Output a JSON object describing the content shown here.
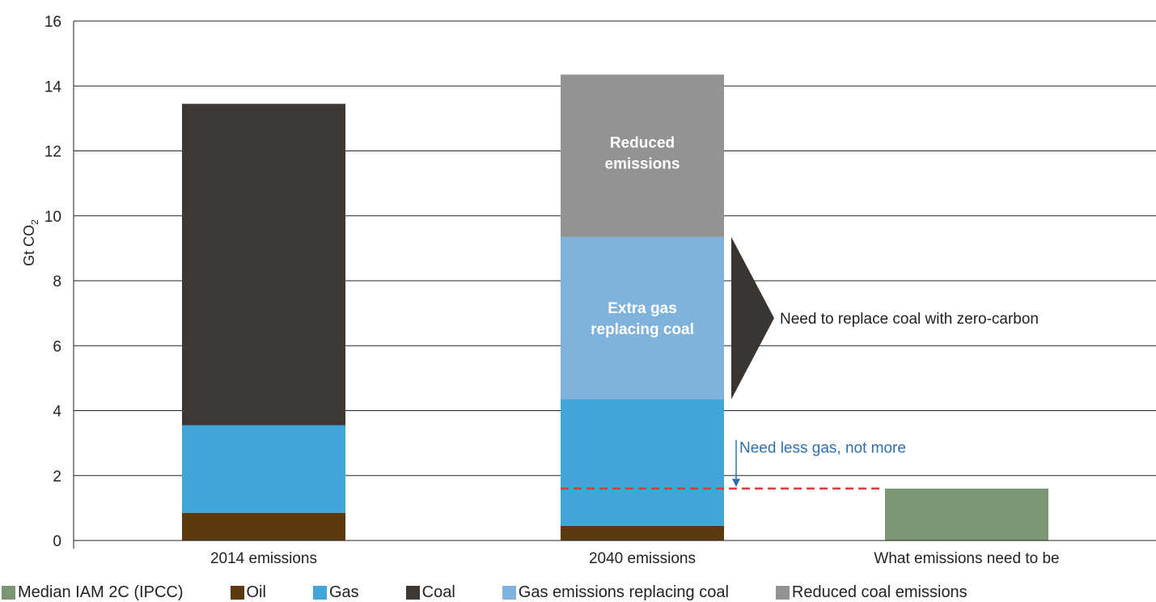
{
  "chart_data": {
    "type": "bar",
    "stacked": true,
    "ylabel_main": "Gt CO",
    "ylabel_sub": "2",
    "ylim": [
      0,
      16
    ],
    "yticks": [
      "0",
      "2",
      "4",
      "6",
      "8",
      "10",
      "12",
      "14",
      "16"
    ],
    "grid": true,
    "categories": [
      "2014 emissions",
      "2040 emissions",
      "What emissions need to be"
    ],
    "series": [
      {
        "name": "Median IAM 2C (IPCC)",
        "color": "#7b9672",
        "values": [
          0,
          0,
          1.6
        ]
      },
      {
        "name": "Oil",
        "color": "#5c3a0e",
        "values": [
          0.85,
          0.45,
          0
        ]
      },
      {
        "name": "Gas",
        "color": "#41a5d9",
        "values": [
          2.7,
          3.9,
          0
        ]
      },
      {
        "name": "Coal",
        "color": "#3d3833",
        "values": [
          9.9,
          0,
          0
        ]
      },
      {
        "name": "Gas emissions replacing coal",
        "color": "#7fb2dd",
        "values": [
          0,
          5.0,
          0
        ]
      },
      {
        "name": "Reduced coal emissions",
        "color": "#949392",
        "values": [
          0,
          5.0,
          0
        ]
      }
    ],
    "bar_labels": {
      "reduced": [
        "Reduced",
        "emissions"
      ],
      "extra_gas": [
        "Extra gas",
        "replacing coal"
      ]
    },
    "annotations": {
      "replace_coal": "Need to replace coal with zero-carbon",
      "less_gas": "Need less gas, not more",
      "target_line_value": 1.6,
      "target_line_color": "#e03a3a",
      "arrow_color": "#3a3530",
      "less_gas_color": "#2f6fb0"
    },
    "legend_position": "bottom"
  }
}
